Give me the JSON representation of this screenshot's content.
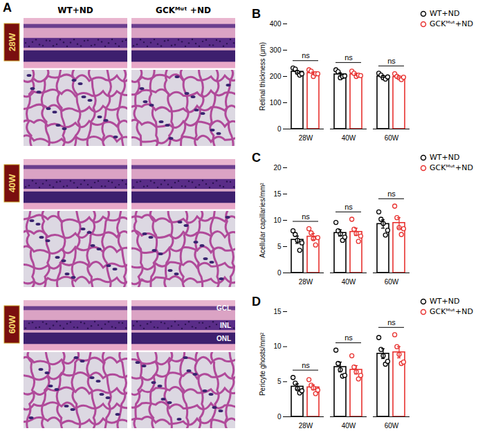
{
  "panel_a": {
    "panel": "A",
    "columns": [
      "WT+ND",
      "GCKᴹᵘᵗ +ND"
    ],
    "rows": [
      "28W",
      "40W",
      "60W"
    ],
    "layer_labels": [
      "GCL",
      "INL",
      "ONL"
    ]
  },
  "chart_data": [
    {
      "panel": "B",
      "type": "bar",
      "ylabel": "Retinal thickness (μm)",
      "categories": [
        "28W",
        "40W",
        "60W"
      ],
      "series": [
        {
          "name": "WT+ND",
          "color": "#000000",
          "values": [
            218,
            208,
            200
          ],
          "errors": [
            5,
            6,
            4
          ],
          "points": [
            [
              232,
              228,
              215,
              205,
              210
            ],
            [
              225,
              218,
              195,
              200,
              202
            ],
            [
              212,
              205,
              195,
              190,
              198
            ]
          ]
        },
        {
          "name": "GCKᴹᵘᵗ+ND",
          "color": "#e8312f",
          "values": [
            213,
            208,
            198
          ],
          "errors": [
            4,
            4,
            4
          ],
          "points": [
            [
              225,
              220,
              200,
              210,
              210
            ],
            [
              220,
              212,
              200,
              205,
              203
            ],
            [
              210,
              200,
              195,
              188,
              197
            ]
          ]
        }
      ],
      "ylim": [
        0,
        400
      ],
      "yticks": [
        0,
        100,
        200,
        300,
        400
      ],
      "annotations": [
        "ns",
        "ns",
        "ns"
      ],
      "legend": "top right"
    },
    {
      "panel": "C",
      "type": "bar",
      "ylabel": "Acellular capillaries/mm²",
      "categories": [
        "28W",
        "40W",
        "60W"
      ],
      "series": [
        {
          "name": "WT+ND",
          "color": "#000000",
          "values": [
            6.3,
            7.6,
            9.3
          ],
          "errors": [
            0.7,
            0.6,
            0.8
          ],
          "points": [
            [
              8.0,
              7.3,
              6.2,
              4.3,
              5.7
            ],
            [
              9.6,
              8.0,
              7.4,
              6.2,
              6.8
            ],
            [
              11.6,
              10.2,
              9.4,
              7.2,
              8.1
            ]
          ]
        },
        {
          "name": "GCKᴹᵘᵗ+ND",
          "color": "#e8312f",
          "values": [
            6.9,
            7.8,
            9.5
          ],
          "errors": [
            0.6,
            0.7,
            1.0
          ],
          "points": [
            [
              8.4,
              7.6,
              6.5,
              5.3,
              6.7
            ],
            [
              10.2,
              8.3,
              7.5,
              6.0,
              7.0
            ],
            [
              12.7,
              10.5,
              8.6,
              7.3,
              8.4
            ]
          ]
        }
      ],
      "ylim": [
        0,
        20
      ],
      "yticks": [
        0,
        5,
        10,
        15,
        20
      ],
      "annotations": [
        "ns",
        "ns",
        "ns"
      ],
      "legend": "top right"
    },
    {
      "panel": "D",
      "type": "bar",
      "ylabel": "Pericyte ghosts/mm²",
      "categories": [
        "28W",
        "40W",
        "60W"
      ],
      "series": [
        {
          "name": "WT+ND",
          "color": "#000000",
          "values": [
            4.3,
            7.1,
            9.0
          ],
          "errors": [
            0.4,
            0.7,
            0.7
          ],
          "points": [
            [
              5.6,
              4.8,
              4.0,
              3.4,
              3.7
            ],
            [
              9.5,
              7.6,
              6.7,
              5.8,
              5.9
            ],
            [
              11.3,
              9.6,
              8.7,
              7.5,
              7.9
            ]
          ]
        },
        {
          "name": "GCKᴹᵘᵗ+ND",
          "color": "#e8312f",
          "values": [
            4.2,
            6.7,
            9.2
          ],
          "errors": [
            0.35,
            0.6,
            0.8
          ],
          "points": [
            [
              5.3,
              4.5,
              4.1,
              3.3,
              3.8
            ],
            [
              8.7,
              7.1,
              6.4,
              5.4,
              5.9
            ],
            [
              11.7,
              10.0,
              8.9,
              7.6,
              7.8
            ]
          ]
        }
      ],
      "ylim": [
        0,
        15
      ],
      "yticks": [
        0,
        5,
        10,
        15
      ],
      "annotations": [
        "ns",
        "ns",
        "ns"
      ],
      "legend": "top right"
    }
  ]
}
